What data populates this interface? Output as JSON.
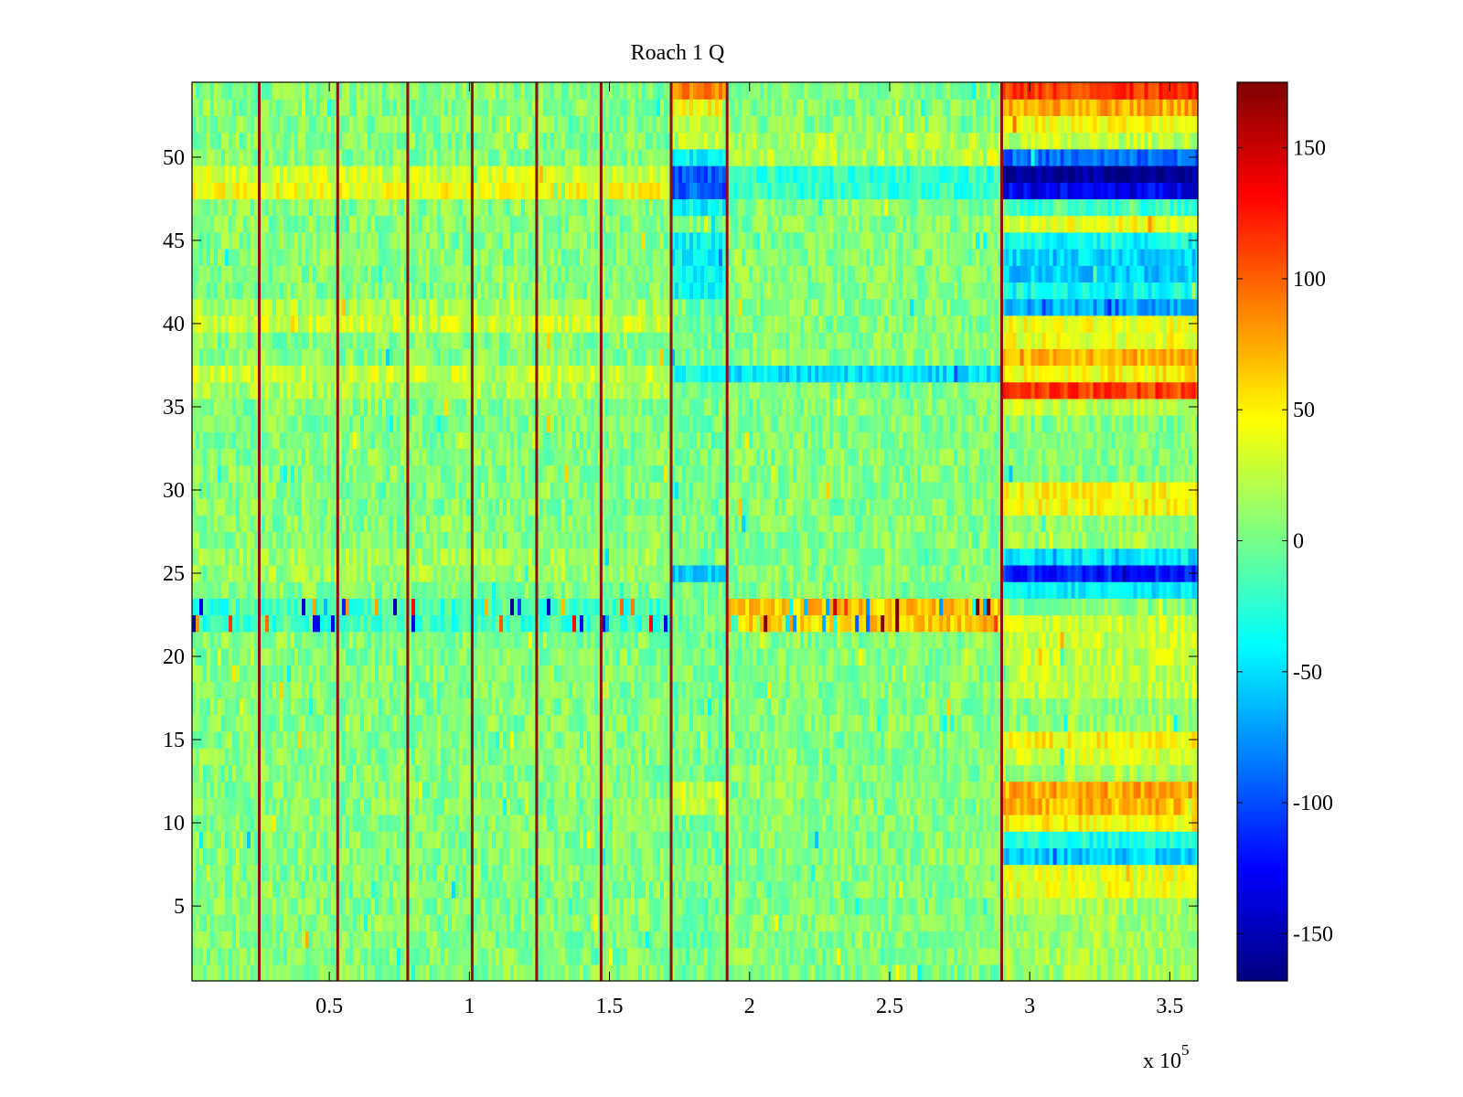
{
  "figure": {
    "background": "#ffffff"
  },
  "chart_data": {
    "type": "heatmap",
    "title": "Roach 1 Q",
    "xlabel": "",
    "ylabel": "",
    "x_exponent_label": "x 10",
    "x_exponent_power": "5",
    "xlim": [
      1000,
      360000
    ],
    "ylim": [
      0.5,
      54.5
    ],
    "x_ticks": [
      {
        "value": 50000,
        "label": "0.5"
      },
      {
        "value": 100000,
        "label": "1"
      },
      {
        "value": 150000,
        "label": "1.5"
      },
      {
        "value": 200000,
        "label": "2"
      },
      {
        "value": 250000,
        "label": "2.5"
      },
      {
        "value": 300000,
        "label": "3"
      },
      {
        "value": 350000,
        "label": "3.5"
      }
    ],
    "y_ticks": [
      {
        "value": 5,
        "label": "5"
      },
      {
        "value": 10,
        "label": "10"
      },
      {
        "value": 15,
        "label": "15"
      },
      {
        "value": 20,
        "label": "20"
      },
      {
        "value": 25,
        "label": "25"
      },
      {
        "value": 30,
        "label": "30"
      },
      {
        "value": 35,
        "label": "35"
      },
      {
        "value": 40,
        "label": "40"
      },
      {
        "value": 45,
        "label": "45"
      },
      {
        "value": 50,
        "label": "50"
      }
    ],
    "rows": 54,
    "colormap": "jet",
    "color_range": [
      -168,
      175
    ],
    "colorbar_ticks": [
      {
        "value": 150,
        "label": "150"
      },
      {
        "value": 100,
        "label": "100"
      },
      {
        "value": 50,
        "label": "50"
      },
      {
        "value": 0,
        "label": "0"
      },
      {
        "value": -50,
        "label": "-50"
      },
      {
        "value": -100,
        "label": "-100"
      },
      {
        "value": -150,
        "label": "-150"
      }
    ],
    "vertical_lines_x": [
      25000,
      53000,
      78000,
      101000,
      124000,
      147000,
      172000,
      192000,
      290000
    ],
    "segments": [
      {
        "x_start": 1000,
        "x_end": 172000,
        "base": 5,
        "row_values": [
          {
            "rows": [
              48
            ],
            "value": 42
          },
          {
            "rows": [
              49
            ],
            "value": 30
          },
          {
            "rows": [
              37,
              40
            ],
            "value": 30
          },
          {
            "rows": [
              36,
              41
            ],
            "value": 18
          },
          {
            "rows": [
              22,
              23
            ],
            "value": -20,
            "spikes": true
          },
          {
            "rows": [
              25,
              26
            ],
            "value": 14
          }
        ]
      },
      {
        "x_start": 172000,
        "x_end": 192000,
        "base": 0,
        "row_values": [
          {
            "rows": [
              54
            ],
            "value": 85
          },
          {
            "rows": [
              53
            ],
            "value": 45
          },
          {
            "rows": [
              52,
              51
            ],
            "value": 25
          },
          {
            "rows": [
              49,
              48
            ],
            "value": -95
          },
          {
            "rows": [
              50,
              47
            ],
            "value": -40
          },
          {
            "rows": [
              42,
              43,
              44,
              45
            ],
            "value": -38
          },
          {
            "rows": [
              37
            ],
            "value": -30
          },
          {
            "rows": [
              25
            ],
            "value": -55
          },
          {
            "rows": [
              11,
              12
            ],
            "value": 25
          }
        ]
      },
      {
        "x_start": 192000,
        "x_end": 290000,
        "base": 5,
        "row_values": [
          {
            "rows": [
              37
            ],
            "value": -50
          },
          {
            "rows": [
              49,
              48
            ],
            "value": -22
          },
          {
            "rows": [
              22,
              23
            ],
            "value": 65,
            "spikes": true
          },
          {
            "rows": [
              50,
              51
            ],
            "value": 20
          }
        ]
      },
      {
        "x_start": 290000,
        "x_end": 360000,
        "base": 5,
        "row_values": [
          {
            "rows": [
              54
            ],
            "value": 115
          },
          {
            "rows": [
              53
            ],
            "value": 75
          },
          {
            "rows": [
              52
            ],
            "value": 45
          },
          {
            "rows": [
              51
            ],
            "value": 25
          },
          {
            "rows": [
              50
            ],
            "value": -90
          },
          {
            "rows": [
              49
            ],
            "value": -160
          },
          {
            "rows": [
              48
            ],
            "value": -130
          },
          {
            "rows": [
              47
            ],
            "value": -20
          },
          {
            "rows": [
              46
            ],
            "value": 40
          },
          {
            "rows": [
              43,
              44
            ],
            "value": -55
          },
          {
            "rows": [
              41
            ],
            "value": -70
          },
          {
            "rows": [
              42,
              45
            ],
            "value": -35
          },
          {
            "rows": [
              39,
              40
            ],
            "value": 40
          },
          {
            "rows": [
              38
            ],
            "value": 75
          },
          {
            "rows": [
              37
            ],
            "value": 48
          },
          {
            "rows": [
              36
            ],
            "value": 110
          },
          {
            "rows": [
              35
            ],
            "value": 22
          },
          {
            "rows": [
              29,
              30
            ],
            "value": 45
          },
          {
            "rows": [
              28,
              27
            ],
            "value": 12
          },
          {
            "rows": [
              26
            ],
            "value": -45
          },
          {
            "rows": [
              25
            ],
            "value": -115
          },
          {
            "rows": [
              24
            ],
            "value": -45
          },
          {
            "rows": [
              21,
              22
            ],
            "value": 30
          },
          {
            "rows": [
              18,
              19,
              20
            ],
            "value": 25
          },
          {
            "rows": [
              16,
              17
            ],
            "value": 10
          },
          {
            "rows": [
              15
            ],
            "value": 48
          },
          {
            "rows": [
              14
            ],
            "value": 35
          },
          {
            "rows": [
              13
            ],
            "value": 18
          },
          {
            "rows": [
              12
            ],
            "value": 75
          },
          {
            "rows": [
              11
            ],
            "value": 70
          },
          {
            "rows": [
              10
            ],
            "value": 48
          },
          {
            "rows": [
              9
            ],
            "value": -30
          },
          {
            "rows": [
              8
            ],
            "value": -55
          },
          {
            "rows": [
              7,
              6
            ],
            "value": 38
          },
          {
            "rows": [
              1,
              2,
              3,
              4,
              5
            ],
            "value": 15
          }
        ]
      }
    ]
  }
}
